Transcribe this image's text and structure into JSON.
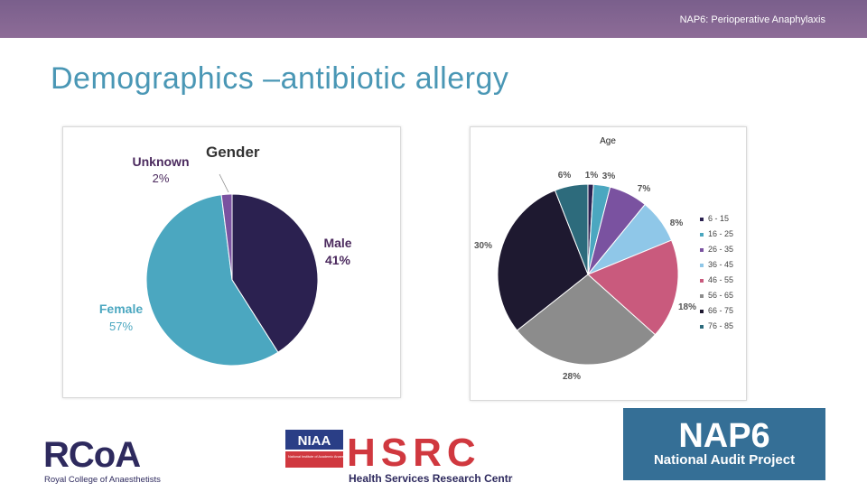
{
  "header": {
    "top_right": "NAP6: Perioperative Anaphylaxis",
    "title": "Demographics –antibiotic allergy"
  },
  "chart_data": [
    {
      "type": "pie",
      "title": "Gender",
      "categories": [
        "Male",
        "Female",
        "Unknown"
      ],
      "values": [
        41,
        57,
        2
      ],
      "value_labels": [
        "41%",
        "57%",
        "2%"
      ],
      "colors": [
        "#2b2150",
        "#4ba7c0",
        "#7a52a0"
      ],
      "label_colors": [
        "#4b2a5e",
        "#4ba7c0",
        "#4b2a5e"
      ]
    },
    {
      "type": "pie",
      "title": "Age",
      "categories": [
        "6 - 15",
        "16 - 25",
        "26 - 35",
        "36 - 45",
        "46 - 55",
        "56 - 65",
        "66 - 75",
        "76 - 85"
      ],
      "values": [
        1,
        3,
        7,
        8,
        18,
        28,
        30,
        6
      ],
      "value_labels": [
        "1%",
        "3%",
        "7%",
        "8%",
        "18%",
        "28%",
        "30%",
        "6%"
      ],
      "colors": [
        "#2b2150",
        "#4ba7c0",
        "#7a52a0",
        "#8fc7e8",
        "#c95a7d",
        "#8c8c8c",
        "#1e1930",
        "#2d6b7c"
      ],
      "legend_position": "right"
    }
  ],
  "logos": {
    "rcoa": {
      "mark": "RCoA",
      "name": "Royal College of Anaesthetists"
    },
    "hsrc": {
      "niaa": "NIAA",
      "niaa_sub": "National Institute of Academic Anaesthesia",
      "mark": "HSRC",
      "name": "Health Services Research Centre"
    },
    "nap6": {
      "mark": "NAP6",
      "name": "National Audit Project"
    }
  }
}
